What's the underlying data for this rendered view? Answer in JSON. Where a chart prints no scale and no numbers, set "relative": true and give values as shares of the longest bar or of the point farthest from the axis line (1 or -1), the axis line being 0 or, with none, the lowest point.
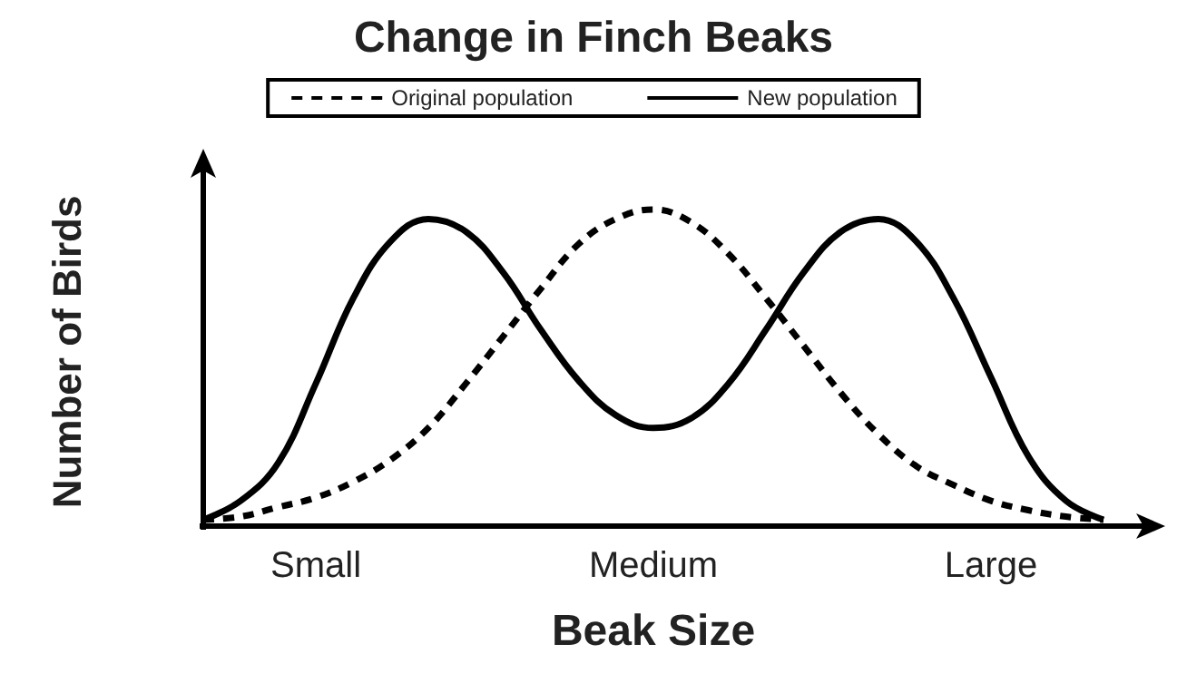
{
  "chart_data": {
    "type": "line",
    "title": "Change in Finch Beaks",
    "xlabel": "Beak Size",
    "ylabel": "Number of Birds",
    "relative": true,
    "legend": "top",
    "grid": false,
    "marker": "none",
    "categories": [
      null,
      null,
      null,
      "Small",
      null,
      null,
      null,
      null,
      null,
      null,
      null,
      null,
      "Medium",
      null,
      null,
      null,
      null,
      null,
      null,
      null,
      null,
      "Large",
      null,
      null,
      null
    ],
    "series": [
      {
        "name": "Original population",
        "color": "#000000",
        "line_style": "dashed",
        "values": [
          0.02,
          0.03,
          0.06,
          0.09,
          0.14,
          0.21,
          0.31,
          0.45,
          0.6,
          0.75,
          0.89,
          0.97,
          1,
          0.96,
          0.86,
          0.72,
          0.57,
          0.42,
          0.29,
          0.19,
          0.13,
          0.08,
          0.05,
          0.03,
          0.02
        ]
      },
      {
        "name": "New population",
        "color": "#000000",
        "line_style": "solid",
        "values": [
          0.02,
          0.08,
          0.2,
          0.45,
          0.72,
          0.9,
          0.97,
          0.93,
          0.8,
          0.62,
          0.46,
          0.35,
          0.31,
          0.34,
          0.45,
          0.62,
          0.8,
          0.93,
          0.97,
          0.9,
          0.72,
          0.47,
          0.22,
          0.08,
          0.02
        ]
      }
    ]
  }
}
